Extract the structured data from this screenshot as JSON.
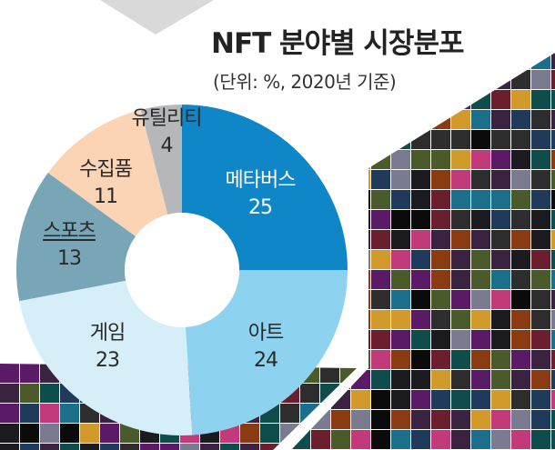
{
  "chart_data": {
    "type": "pie",
    "style": "donut",
    "title": "NFT 분야별 시장분포",
    "subtitle": "(단위: %, 2020년 기준)",
    "unit": "%",
    "start": "top",
    "direction": "clockwise",
    "slices": [
      {
        "label": "메타버스",
        "value": 25,
        "color": "#0e86c8",
        "text_color": "#ffffff"
      },
      {
        "label": "아트",
        "value": 24,
        "color": "#8dd3ef",
        "text_color": "#2a2a2a"
      },
      {
        "label": "게임",
        "value": 23,
        "color": "#d5eef8",
        "text_color": "#2a2a2a"
      },
      {
        "label": "스포츠",
        "value": 13,
        "color": "#78a6b6",
        "text_color": "#2a2a2a"
      },
      {
        "label": "수집품",
        "value": 11,
        "color": "#fbd4b5",
        "text_color": "#2a2a2a"
      },
      {
        "label": "유틸리티",
        "value": 4,
        "color": "#b5b7ba",
        "text_color": "#2a2a2a"
      }
    ]
  },
  "decor": {
    "triangle_color": "#d9d9d9",
    "collage": "NFT artwork collage"
  }
}
